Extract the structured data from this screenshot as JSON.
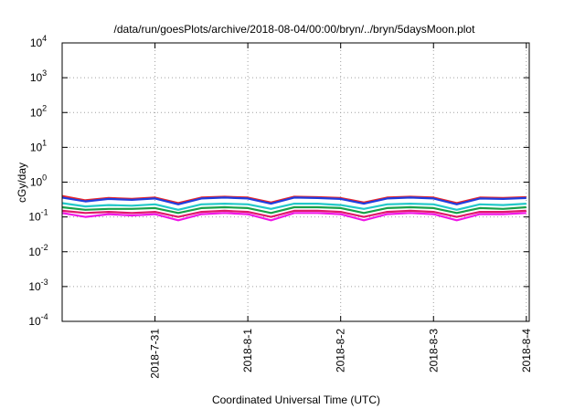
{
  "chart_data": {
    "type": "line",
    "title": "/data/run/goesPlots/archive/2018-08-04/00:00/bryn/../bryn/5daysMoon.plot",
    "xlabel": "Coordinated Universal Time (UTC)",
    "ylabel": "cGy/day",
    "yscale": "log",
    "ylim": [
      0.0001,
      10000
    ],
    "xlim": [
      "2018-07-30T00:00",
      "2018-08-04T00:45"
    ],
    "grid": true,
    "y_ticks": [
      {
        "base": "10",
        "exp": "4"
      },
      {
        "base": "10",
        "exp": "3"
      },
      {
        "base": "10",
        "exp": "2"
      },
      {
        "base": "10",
        "exp": "1"
      },
      {
        "base": "10",
        "exp": "0"
      },
      {
        "base": "10",
        "exp": "-1"
      },
      {
        "base": "10",
        "exp": "-2"
      },
      {
        "base": "10",
        "exp": "-3"
      },
      {
        "base": "10",
        "exp": "-4"
      }
    ],
    "x_ticks": [
      "2018-7-31",
      "2018-8-1",
      "2018-8-2",
      "2018-8-3",
      "2018-8-4"
    ],
    "x_tick_times": [
      "2018-07-31T00:00",
      "2018-08-01T00:00",
      "2018-08-02T00:00",
      "2018-08-03T00:00",
      "2018-08-04T00:00"
    ],
    "x": [
      "2018-07-30T00:00",
      "2018-07-30T06:00",
      "2018-07-30T12:00",
      "2018-07-30T18:00",
      "2018-07-31T00:00",
      "2018-07-31T06:00",
      "2018-07-31T12:00",
      "2018-07-31T18:00",
      "2018-08-01T00:00",
      "2018-08-01T06:00",
      "2018-08-01T12:00",
      "2018-08-01T18:00",
      "2018-08-02T00:00",
      "2018-08-02T06:00",
      "2018-08-02T12:00",
      "2018-08-02T18:00",
      "2018-08-03T00:00",
      "2018-08-03T06:00",
      "2018-08-03T12:00",
      "2018-08-03T18:00",
      "2018-08-04T00:00"
    ],
    "series": [
      {
        "color": "#e8262b",
        "values": [
          0.4,
          0.3,
          0.35,
          0.33,
          0.36,
          0.25,
          0.36,
          0.38,
          0.36,
          0.26,
          0.38,
          0.37,
          0.35,
          0.26,
          0.36,
          0.38,
          0.36,
          0.25,
          0.36,
          0.35,
          0.37
        ]
      },
      {
        "color": "#1f3de0",
        "values": [
          0.36,
          0.28,
          0.33,
          0.31,
          0.34,
          0.23,
          0.34,
          0.36,
          0.34,
          0.24,
          0.36,
          0.35,
          0.33,
          0.24,
          0.34,
          0.36,
          0.34,
          0.23,
          0.34,
          0.33,
          0.35
        ]
      },
      {
        "color": "#22c8c8",
        "values": [
          0.25,
          0.2,
          0.22,
          0.21,
          0.23,
          0.16,
          0.23,
          0.24,
          0.23,
          0.17,
          0.24,
          0.24,
          0.22,
          0.17,
          0.23,
          0.24,
          0.23,
          0.16,
          0.23,
          0.22,
          0.24
        ]
      },
      {
        "color": "#18a048",
        "values": [
          0.19,
          0.16,
          0.17,
          0.17,
          0.18,
          0.13,
          0.18,
          0.19,
          0.18,
          0.13,
          0.19,
          0.19,
          0.18,
          0.13,
          0.18,
          0.19,
          0.18,
          0.13,
          0.18,
          0.17,
          0.19
        ]
      },
      {
        "color": "#e0186a",
        "values": [
          0.15,
          0.13,
          0.14,
          0.13,
          0.14,
          0.1,
          0.14,
          0.15,
          0.14,
          0.1,
          0.15,
          0.15,
          0.14,
          0.1,
          0.14,
          0.15,
          0.14,
          0.1,
          0.14,
          0.14,
          0.15
        ]
      },
      {
        "color": "#f018e8",
        "values": [
          0.13,
          0.1,
          0.12,
          0.11,
          0.12,
          0.08,
          0.12,
          0.13,
          0.12,
          0.08,
          0.13,
          0.13,
          0.12,
          0.08,
          0.12,
          0.13,
          0.12,
          0.08,
          0.12,
          0.12,
          0.13
        ]
      }
    ]
  }
}
